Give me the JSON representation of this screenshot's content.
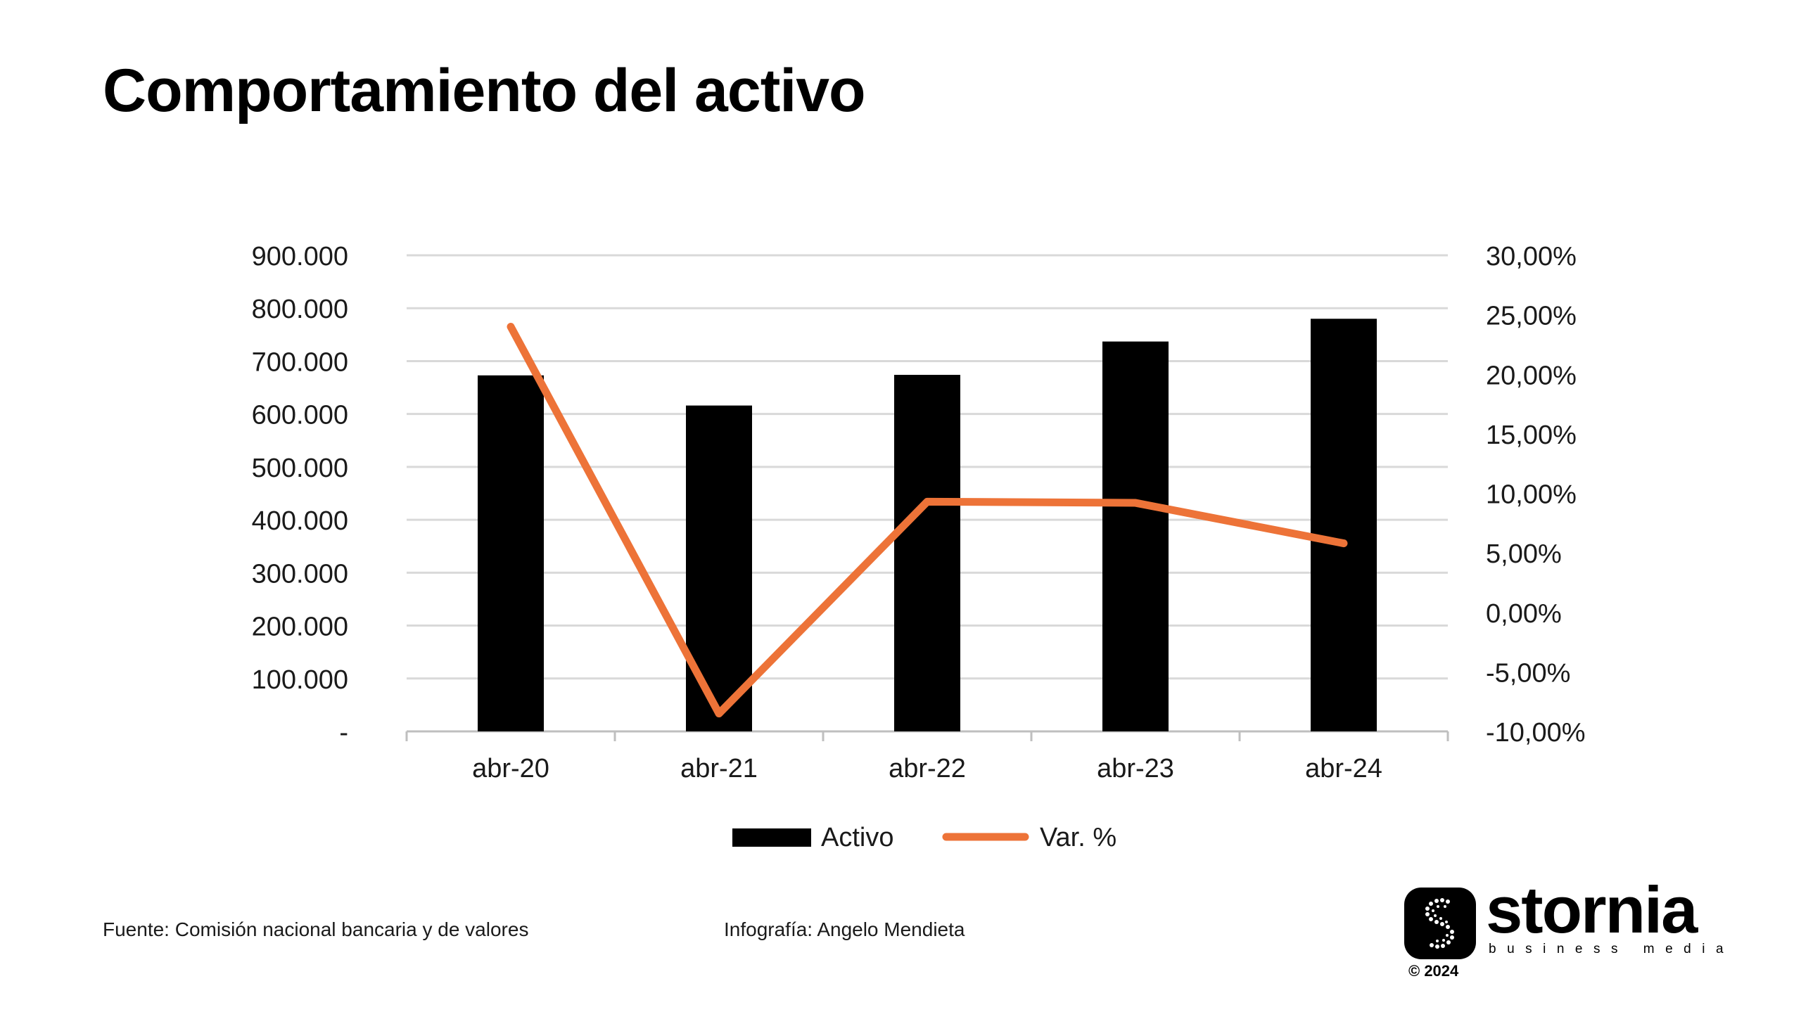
{
  "title": "Comportamiento del activo",
  "footer": {
    "source": "Fuente: Comisión nacional bancaria y de valores",
    "credit": "Infografía: Angelo Mendieta"
  },
  "logo": {
    "name": "stornia",
    "tagline": "business media",
    "copyright": "© 2024",
    "icon": "stornia-s-logo-icon"
  },
  "colors": {
    "bar": "#000000",
    "line": "#ED7338",
    "grid": "#D9D9D9",
    "axis": "#BFBFBF",
    "text": "#1a1a1a"
  },
  "chart_data": {
    "type": "bar",
    "title": "Comportamiento del activo",
    "categories": [
      "abr-20",
      "abr-21",
      "abr-22",
      "abr-23",
      "abr-24"
    ],
    "series": [
      {
        "name": "Activo",
        "type": "bar",
        "axis": "left",
        "values": [
          673000,
          616000,
          674000,
          737000,
          780000
        ]
      },
      {
        "name": "Var. %",
        "type": "line",
        "axis": "right",
        "values": [
          24.0,
          -8.5,
          9.3,
          9.2,
          5.8
        ]
      }
    ],
    "left_axis": {
      "min": 0,
      "max": 900000,
      "ticks": [
        0,
        100000,
        200000,
        300000,
        400000,
        500000,
        600000,
        700000,
        800000,
        900000
      ],
      "tick_labels": [
        "-",
        "100.000",
        "200.000",
        "300.000",
        "400.000",
        "500.000",
        "600.000",
        "700.000",
        "800.000",
        "900.000"
      ]
    },
    "right_axis": {
      "min": -10,
      "max": 30,
      "ticks": [
        -10,
        -5,
        0,
        5,
        10,
        15,
        20,
        25,
        30
      ],
      "tick_labels": [
        "-10,00%",
        "-5,00%",
        "0,00%",
        "5,00%",
        "10,00%",
        "15,00%",
        "20,00%",
        "25,00%",
        "30,00%"
      ]
    },
    "grid": true,
    "legend": "bottom"
  }
}
